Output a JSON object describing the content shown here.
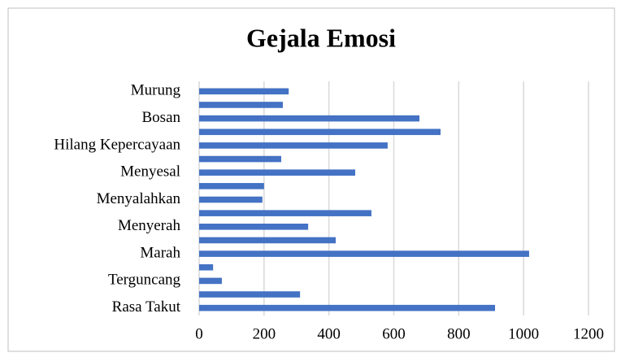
{
  "chart_data": {
    "type": "barh",
    "title": "Gejala Emosi",
    "categories": [
      "Rasa Takut",
      null,
      "Terguncang",
      null,
      "Marah",
      null,
      "Menyerah",
      null,
      "Menyalahkan",
      null,
      "Menyesal",
      null,
      "Hilang Kepercayaan",
      null,
      "Bosan",
      null,
      "Murung"
    ],
    "values": [
      912,
      311,
      70,
      43,
      1017,
      421,
      336,
      531,
      195,
      200,
      481,
      253,
      581,
      744,
      679,
      258,
      276
    ],
    "color": "#4472c4",
    "xlim": [
      0,
      1200
    ],
    "xticks": [
      0,
      200,
      400,
      600,
      800,
      1000,
      1200
    ],
    "grid": true
  }
}
